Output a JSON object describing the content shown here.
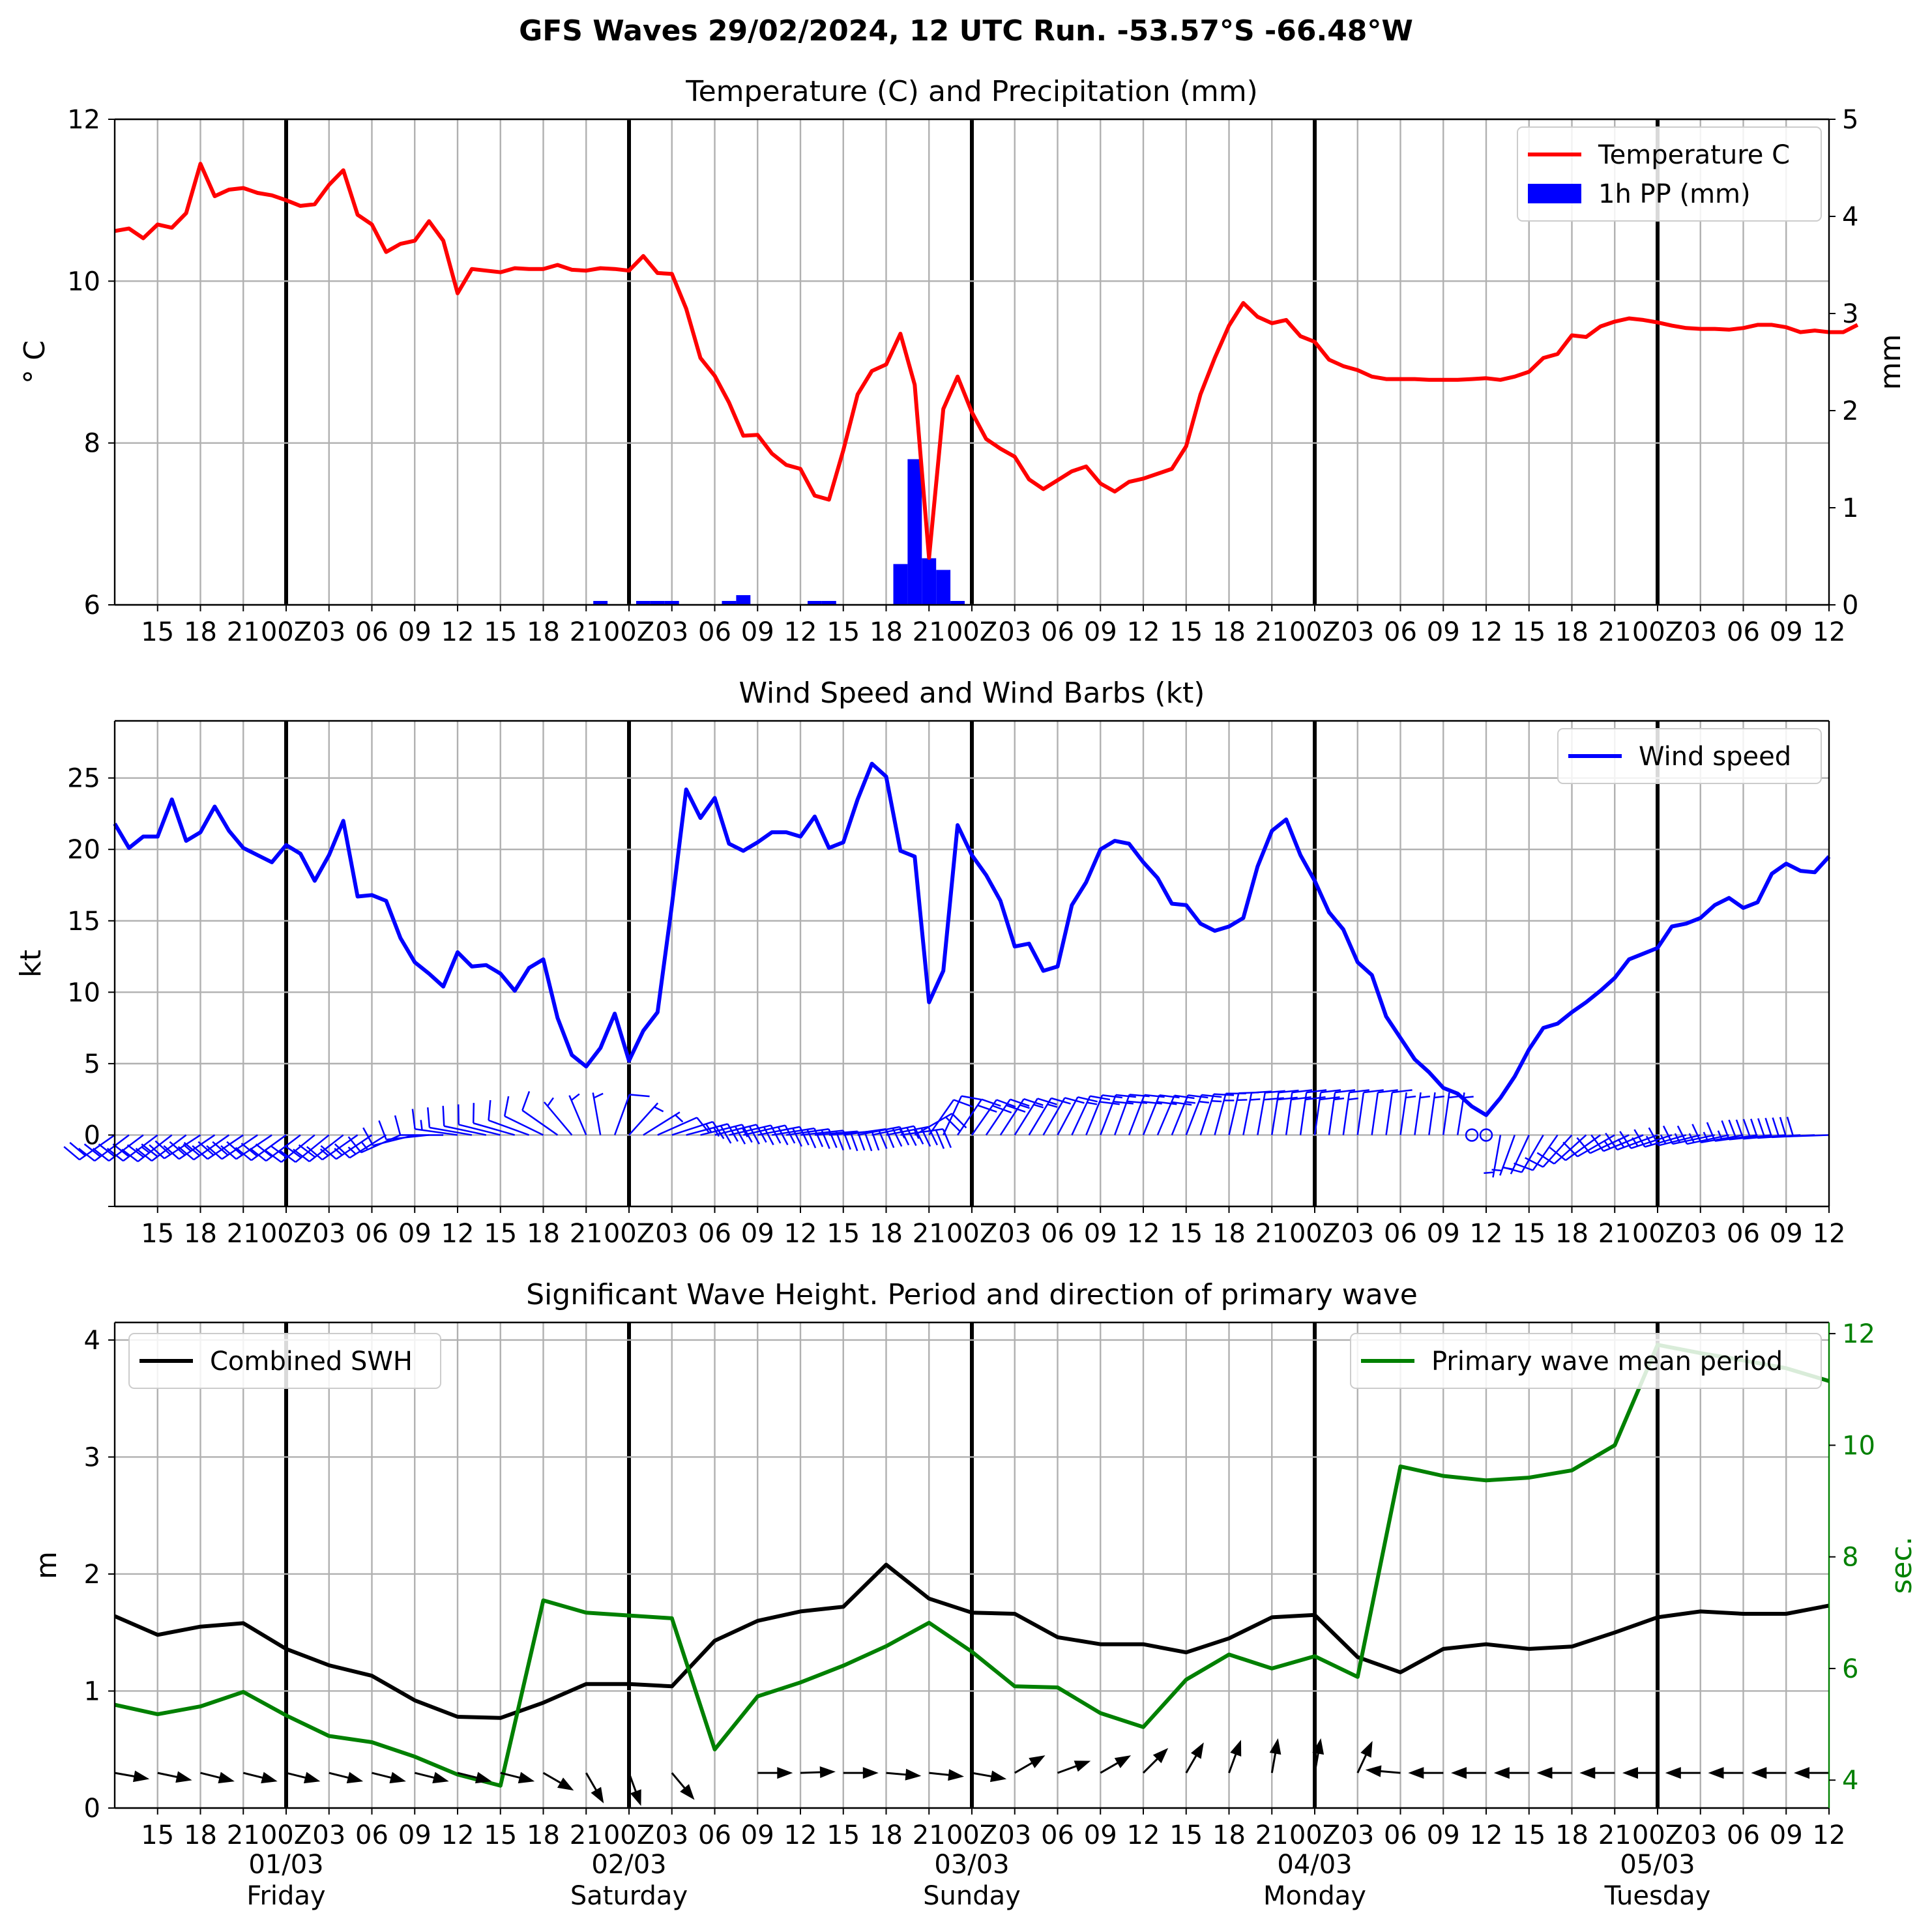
{
  "page_title": "GFS Waves 29/02/2024, 12 UTC Run. -53.57°S -66.48°W",
  "colors": {
    "temperature": "#ff0000",
    "precip": "#0000ff",
    "wind": "#0000ff",
    "swh": "#000000",
    "period": "#008000",
    "arrows": "#000000"
  },
  "x_axis": {
    "start": "2024-02-29T12:00Z",
    "end": "2024-03-05T12:00Z",
    "tick_step_hours": 3,
    "day_boundaries": [
      "2024-03-01T00:00Z",
      "2024-03-02T00:00Z",
      "2024-03-03T00:00Z",
      "2024-03-04T00:00Z",
      "2024-03-05T00:00Z"
    ],
    "tick_labels": [
      "15",
      "18",
      "21",
      "00Z",
      "03",
      "06",
      "09",
      "12",
      "15",
      "18",
      "21",
      "00Z",
      "03",
      "06",
      "09",
      "12",
      "15",
      "18",
      "21",
      "00Z",
      "03",
      "06",
      "09",
      "12",
      "15",
      "18",
      "21",
      "00Z",
      "03",
      "06",
      "09",
      "12",
      "15",
      "18",
      "21",
      "00Z",
      "03",
      "06",
      "09",
      "12"
    ],
    "day_labels": [
      {
        "date": "01/03",
        "weekday": "Friday"
      },
      {
        "date": "02/03",
        "weekday": "Saturday"
      },
      {
        "date": "03/03",
        "weekday": "Sunday"
      },
      {
        "date": "04/03",
        "weekday": "Monday"
      },
      {
        "date": "05/03",
        "weekday": "Tuesday"
      }
    ]
  },
  "chart_data": [
    {
      "type": "line",
      "panel": "temperature_precipitation",
      "title": "Temperature (C) and Precipitation (mm)",
      "ylabel": "$^\\circ$C",
      "ylabel_display": "° C",
      "ylim": [
        6,
        12
      ],
      "yticks": [
        "6",
        "8",
        "10",
        "12"
      ],
      "y2label": "mm",
      "y2lim": [
        0,
        5
      ],
      "y2ticks": [
        "0",
        "1",
        "2",
        "3",
        "4",
        "5"
      ],
      "grid": true,
      "legend": "top-right",
      "legend_entries": [
        "Temperature C",
        "1h PP (mm)"
      ],
      "series": [
        {
          "name": "Temperature C",
          "axis": "left",
          "time_step_hours": 1,
          "x_start": "2024-02-29T12:00Z",
          "values": [
            10.62,
            10.65,
            10.53,
            10.7,
            10.66,
            10.84,
            11.45,
            11.05,
            11.13,
            11.15,
            11.09,
            11.06,
            11.0,
            10.93,
            10.95,
            11.19,
            11.37,
            10.82,
            10.7,
            10.36,
            10.46,
            10.5,
            10.74,
            10.5,
            9.85,
            10.15,
            10.13,
            10.11,
            10.16,
            10.15,
            10.15,
            10.2,
            10.14,
            10.13,
            10.16,
            10.15,
            10.13,
            10.31,
            10.1,
            10.09,
            9.66,
            9.05,
            8.83,
            8.5,
            8.09,
            8.1,
            7.87,
            7.73,
            7.68,
            7.35,
            7.3,
            7.91,
            8.6,
            8.89,
            8.97,
            9.35,
            8.72,
            6.58,
            8.42,
            8.82,
            8.38,
            8.05,
            7.93,
            7.83,
            7.55,
            7.43,
            7.54,
            7.65,
            7.71,
            7.5,
            7.4,
            7.52,
            7.56,
            7.62,
            7.68,
            7.96,
            8.6,
            9.05,
            9.45,
            9.73,
            9.56,
            9.48,
            9.52,
            9.32,
            9.25,
            9.03,
            8.95,
            8.9,
            8.82,
            8.79,
            8.79,
            8.79,
            8.78,
            8.78,
            8.78,
            8.79,
            8.8,
            8.78,
            8.82,
            8.88,
            9.05,
            9.1,
            9.33,
            9.31,
            9.44,
            9.5,
            9.54,
            9.52,
            9.49,
            9.45,
            9.42,
            9.41,
            9.41,
            9.4,
            9.42,
            9.46,
            9.46,
            9.43,
            9.37,
            9.39,
            9.37,
            9.37,
            9.46
          ]
        },
        {
          "name": "1h PP (mm)",
          "type": "bar",
          "axis": "right",
          "bars": [
            {
              "time": "2024-03-01T22:00Z",
              "value": 0.04
            },
            {
              "time": "2024-03-02T01:00Z",
              "value": 0.04
            },
            {
              "time": "2024-03-02T02:00Z",
              "value": 0.04
            },
            {
              "time": "2024-03-02T03:00Z",
              "value": 0.04
            },
            {
              "time": "2024-03-02T07:00Z",
              "value": 0.04
            },
            {
              "time": "2024-03-02T08:00Z",
              "value": 0.1
            },
            {
              "time": "2024-03-02T13:00Z",
              "value": 0.04
            },
            {
              "time": "2024-03-02T14:00Z",
              "value": 0.04
            },
            {
              "time": "2024-03-02T19:00Z",
              "value": 0.42
            },
            {
              "time": "2024-03-02T20:00Z",
              "value": 1.5
            },
            {
              "time": "2024-03-02T21:00Z",
              "value": 0.48
            },
            {
              "time": "2024-03-02T22:00Z",
              "value": 0.36
            },
            {
              "time": "2024-03-02T23:00Z",
              "value": 0.04
            }
          ]
        }
      ]
    },
    {
      "type": "line",
      "panel": "wind",
      "title": "Wind Speed and Wind Barbs (kt)",
      "ylabel": "kt",
      "ylim": [
        -5,
        29
      ],
      "yticks": [
        "0",
        "5",
        "10",
        "15",
        "20",
        "25"
      ],
      "grid": true,
      "legend": "top-right",
      "legend_entries": [
        "Wind speed"
      ],
      "series": [
        {
          "name": "Wind speed",
          "time_step_hours": 1,
          "x_start": "2024-02-29T12:00Z",
          "values": [
            21.8,
            20.1,
            20.9,
            20.9,
            23.5,
            20.6,
            21.2,
            23.0,
            21.3,
            20.1,
            19.6,
            19.1,
            20.3,
            19.7,
            17.8,
            19.6,
            22.0,
            16.7,
            16.8,
            16.4,
            13.8,
            12.1,
            11.3,
            10.4,
            12.8,
            11.8,
            11.9,
            11.3,
            10.1,
            11.7,
            12.3,
            8.2,
            5.6,
            4.8,
            6.1,
            8.5,
            5.2,
            7.3,
            8.6,
            16.1,
            24.2,
            22.2,
            23.6,
            20.4,
            19.9,
            20.5,
            21.2,
            21.2,
            20.9,
            22.3,
            20.1,
            20.5,
            23.5,
            26.0,
            25.1,
            19.9,
            19.5,
            9.3,
            11.5,
            21.7,
            19.6,
            18.2,
            16.4,
            13.2,
            13.4,
            11.5,
            11.8,
            16.1,
            17.7,
            20.0,
            20.6,
            20.4,
            19.1,
            18.0,
            16.2,
            16.1,
            14.8,
            14.3,
            14.6,
            15.2,
            18.8,
            21.3,
            22.1,
            19.6,
            17.8,
            15.6,
            14.4,
            12.1,
            11.2,
            8.3,
            6.8,
            5.3,
            4.4,
            3.3,
            2.9,
            2.0,
            1.4,
            2.6,
            4.1,
            6.0,
            7.5,
            7.8,
            8.6,
            9.3,
            10.1,
            11.0,
            12.3,
            12.7,
            13.1,
            14.6,
            14.8,
            15.2,
            16.1,
            16.6,
            15.9,
            16.3,
            18.3,
            19.0,
            18.5,
            18.4,
            19.5
          ]
        }
      ],
      "barbs": {
        "direction_from_deg": [
          235,
          233,
          233,
          233,
          232,
          233,
          237,
          236,
          235,
          236,
          236,
          236,
          234,
          233,
          231,
          231,
          232,
          235,
          236,
          238,
          246,
          256,
          264,
          270,
          278,
          280,
          282,
          284,
          286,
          290,
          296,
          305,
          320,
          337,
          350,
          20,
          42,
          58,
          66,
          72,
          75,
          76,
          76,
          77,
          77,
          79,
          81,
          82,
          84,
          85,
          85,
          82,
          79,
          78,
          79,
          82,
          60,
          35,
          25,
          34,
          35,
          34,
          33,
          32,
          31,
          30,
          28,
          25,
          22,
          21,
          20,
          21,
          22,
          23,
          22,
          21,
          18,
          15,
          13,
          11,
          10,
          9,
          8,
          8,
          8,
          8,
          8,
          8,
          8,
          8,
          8,
          8,
          8,
          8,
          9,
          20,
          60,
          190,
          200,
          205,
          210,
          215,
          222,
          228,
          234,
          240,
          245,
          248,
          250,
          252,
          254,
          256,
          258,
          258,
          260,
          262,
          264,
          265,
          266,
          267,
          268
        ]
      }
    },
    {
      "type": "line",
      "panel": "waves",
      "title": "Significant Wave Height. Period and direction of primary wave",
      "ylabel": "m",
      "ylim": [
        0,
        4.15
      ],
      "yticks": [
        "0",
        "1",
        "2",
        "3",
        "4"
      ],
      "y2label": "sec.",
      "y2lim": [
        3.5,
        12.2
      ],
      "y2ticks": [
        "4",
        "6",
        "8",
        "10",
        "12"
      ],
      "grid": true,
      "legend_entries": [
        "Combined SWH",
        "Primary wave mean period"
      ],
      "legend_left": "top-left",
      "legend_right": "top-right",
      "series": [
        {
          "name": "Combined SWH",
          "axis": "left",
          "time_step_hours": 3,
          "x_start": "2024-02-29T12:00Z",
          "values": [
            1.64,
            1.48,
            1.55,
            1.58,
            1.36,
            1.22,
            1.13,
            0.92,
            0.78,
            0.77,
            0.9,
            1.06,
            1.06,
            1.04,
            1.43,
            1.6,
            1.68,
            1.72,
            2.08,
            1.79,
            1.67,
            1.66,
            1.46,
            1.4,
            1.4,
            1.33,
            1.45,
            1.63,
            1.65,
            1.29,
            1.16,
            1.36,
            1.4,
            1.36,
            1.38,
            1.5,
            1.63,
            1.68,
            1.66,
            1.66,
            1.73
          ]
        },
        {
          "name": "Primary wave mean period",
          "axis": "right",
          "time_step_hours": 3,
          "x_start": "2024-02-29T12:00Z",
          "values": [
            5.35,
            5.18,
            5.32,
            5.58,
            5.16,
            4.79,
            4.68,
            4.42,
            4.1,
            3.9,
            7.22,
            7.0,
            6.95,
            6.9,
            4.55,
            5.5,
            5.75,
            6.05,
            6.4,
            6.82,
            6.3,
            5.68,
            5.66,
            5.2,
            4.95,
            5.8,
            6.25,
            6.0,
            6.22,
            5.85,
            9.62,
            9.45,
            9.37,
            9.42,
            9.55,
            10.0,
            11.8,
            11.65,
            11.52,
            11.38,
            11.15
          ]
        }
      ],
      "arrows": {
        "time_step_hours": 3,
        "direction_to_deg": [
          100,
          102,
          104,
          104,
          104,
          104,
          104,
          104,
          104,
          104,
          120,
          150,
          160,
          140,
          null,
          90,
          88,
          90,
          95,
          96,
          100,
          60,
          70,
          60,
          45,
          30,
          20,
          10,
          10,
          25,
          275,
          270,
          270,
          270,
          270,
          270,
          270,
          270,
          270,
          270,
          270
        ]
      }
    }
  ]
}
